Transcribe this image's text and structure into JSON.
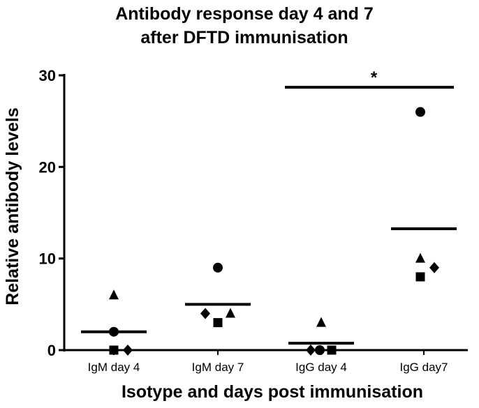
{
  "chart_data": {
    "type": "scatter",
    "title_line1": "Antibody response day 4 and 7",
    "title_line2": "after DFTD immunisation",
    "xlabel": "Isotype and days post immunisation",
    "ylabel": "Relative antibody levels",
    "ylim": [
      0,
      30
    ],
    "yticks": [
      0,
      10,
      20,
      30
    ],
    "categories": [
      "IgM day 4",
      "IgM day 7",
      "IgG day 4",
      "IgG day7"
    ],
    "series": [
      {
        "marker": "circle",
        "values": [
          2,
          9,
          0,
          26
        ]
      },
      {
        "marker": "square",
        "values": [
          0,
          3,
          0,
          8
        ]
      },
      {
        "marker": "triangle",
        "values": [
          6,
          4,
          3,
          10
        ]
      },
      {
        "marker": "diamond",
        "values": [
          0,
          4,
          0,
          9
        ]
      }
    ],
    "means": [
      2,
      5,
      0.75,
      13.25
    ],
    "significance": {
      "label": "*",
      "from": "IgG day 4",
      "to": "IgG day7",
      "y": 28.7
    },
    "grid": false,
    "legend": "none"
  }
}
